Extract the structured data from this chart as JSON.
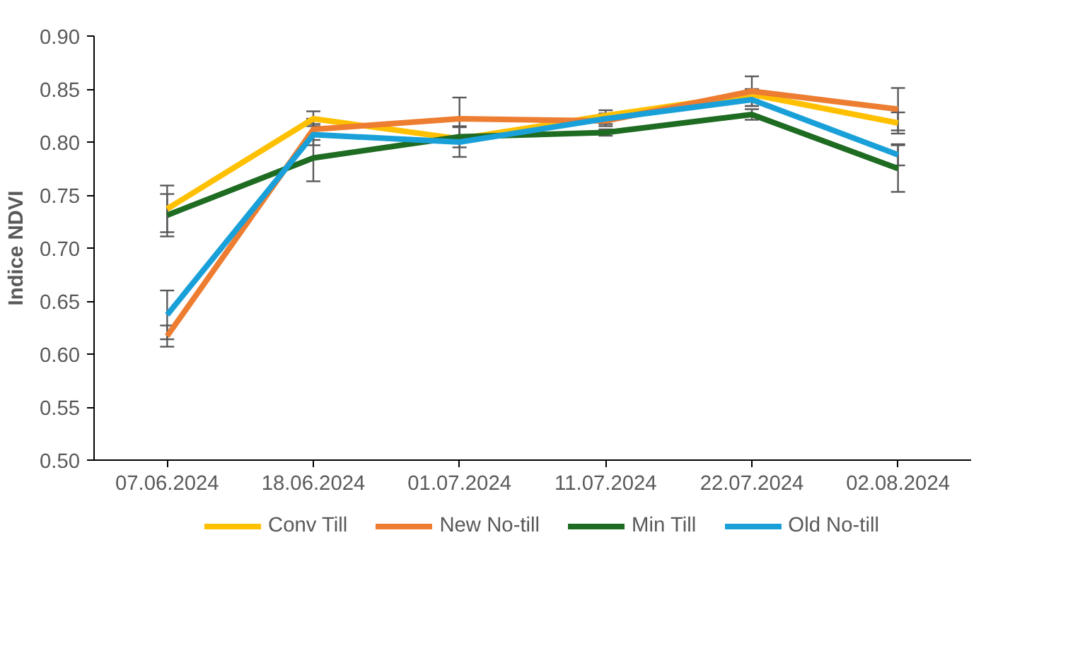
{
  "chart_data": {
    "type": "line",
    "ylabel": "Indice NDVI",
    "categories": [
      "07.06.2024",
      "18.06.2024",
      "01.07.2024",
      "11.07.2024",
      "22.07.2024",
      "02.08.2024"
    ],
    "series": [
      {
        "name": "Conv Till",
        "color": "#ffc000",
        "values": [
          0.737,
          0.822,
          0.803,
          0.825,
          0.845,
          0.818
        ],
        "errors": [
          0.022,
          0.007,
          null,
          0.005,
          0.005,
          0.01
        ]
      },
      {
        "name": "New No-till",
        "color": "#ed7d31",
        "values": [
          0.617,
          0.812,
          0.822,
          0.82,
          0.848,
          0.831
        ],
        "errors": [
          0.01,
          0.01,
          0.02,
          0.005,
          0.014,
          0.02
        ]
      },
      {
        "name": "Min Till",
        "color": "#1e6b22",
        "values": [
          0.731,
          0.785,
          0.805,
          0.809,
          0.826,
          0.775
        ],
        "errors": [
          0.02,
          0.022,
          0.01,
          0.003,
          0.005,
          0.022
        ]
      },
      {
        "name": "Old No-till",
        "color": "#1aa0d8",
        "values": [
          0.637,
          0.807,
          0.8,
          0.822,
          0.84,
          0.788
        ],
        "errors": [
          0.023,
          0.01,
          0.014,
          0.005,
          0.006,
          0.01
        ]
      }
    ],
    "ylim": [
      0.5,
      0.9
    ],
    "yticks": [
      {
        "value": 0.5,
        "label": "0.50"
      },
      0.55,
      {
        "value": 0.6,
        "label": "0.60"
      },
      0.65,
      {
        "value": 0.7,
        "label": "0.70"
      },
      0.75,
      {
        "value": 0.8,
        "label": "0.80"
      },
      0.85,
      {
        "value": 0.9,
        "label": "0.90"
      }
    ],
    "grid": false,
    "legend": "bottom",
    "marker": "none",
    "line_style": "solid"
  }
}
